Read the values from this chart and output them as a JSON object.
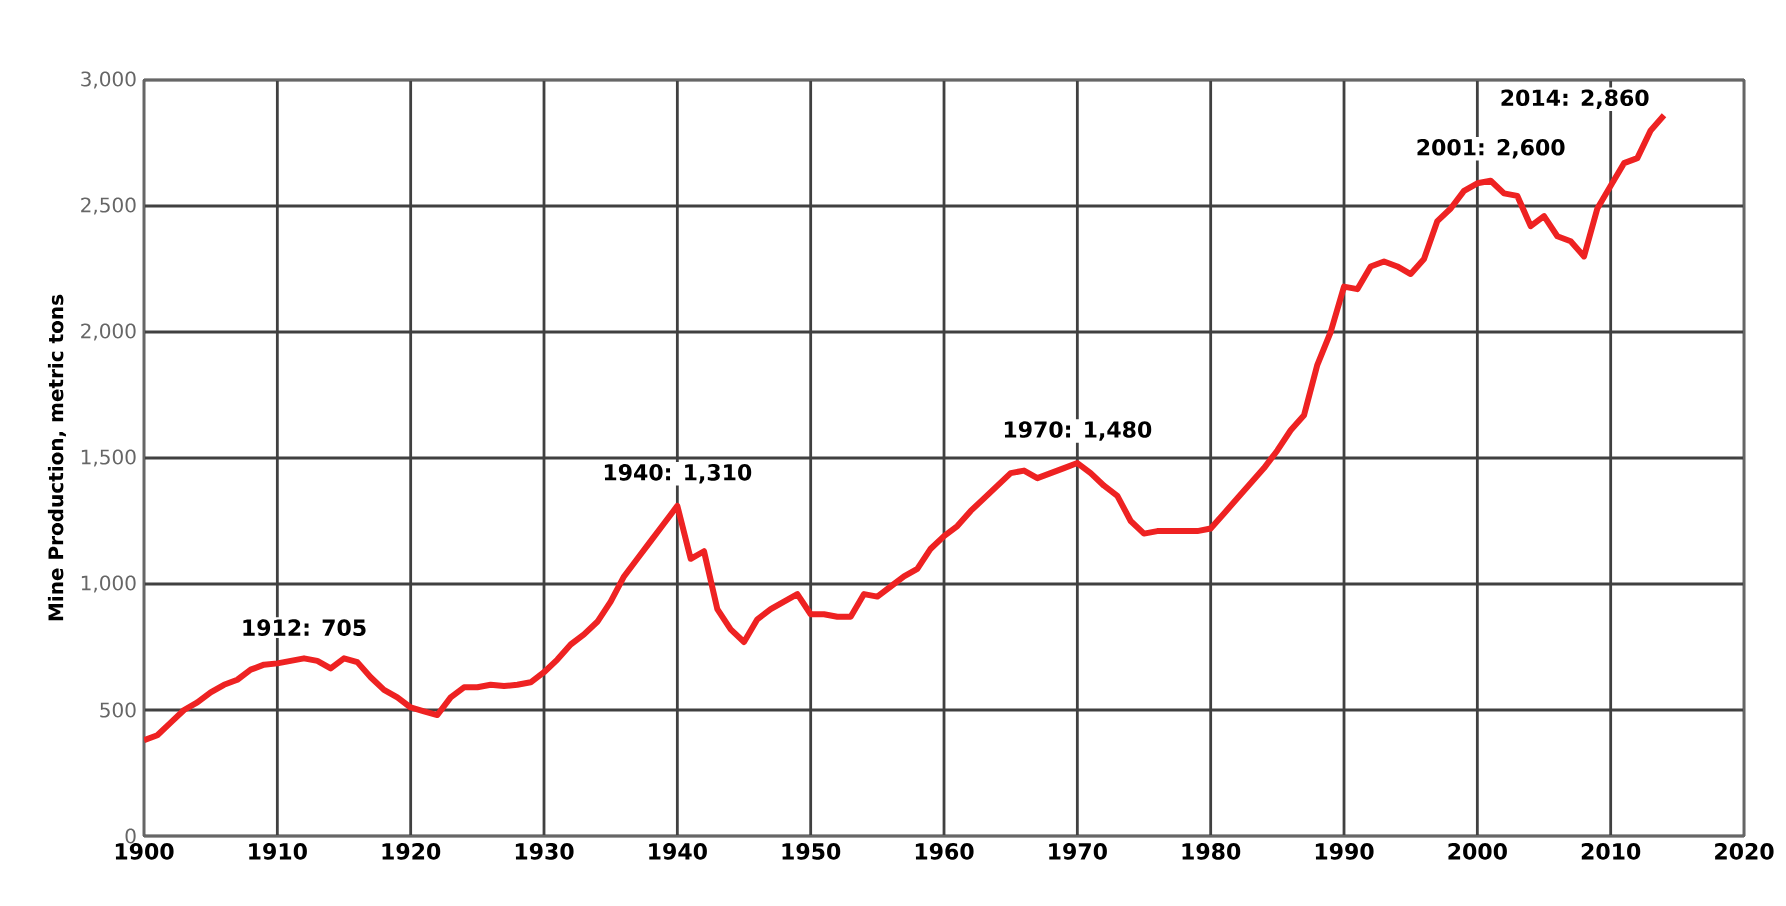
{
  "chart_data": {
    "type": "line",
    "ylabel": "Mine Production, metric tons",
    "x": [
      1900,
      1901,
      1902,
      1903,
      1904,
      1905,
      1906,
      1907,
      1908,
      1909,
      1910,
      1911,
      1912,
      1913,
      1914,
      1915,
      1916,
      1917,
      1918,
      1919,
      1920,
      1921,
      1922,
      1923,
      1924,
      1925,
      1926,
      1927,
      1928,
      1929,
      1930,
      1931,
      1932,
      1933,
      1934,
      1935,
      1936,
      1937,
      1938,
      1939,
      1940,
      1941,
      1942,
      1943,
      1944,
      1945,
      1946,
      1947,
      1948,
      1949,
      1950,
      1951,
      1952,
      1953,
      1954,
      1955,
      1956,
      1957,
      1958,
      1959,
      1960,
      1961,
      1962,
      1963,
      1964,
      1965,
      1966,
      1967,
      1968,
      1969,
      1970,
      1971,
      1972,
      1973,
      1974,
      1975,
      1976,
      1977,
      1978,
      1979,
      1980,
      1981,
      1982,
      1983,
      1984,
      1985,
      1986,
      1987,
      1988,
      1989,
      1990,
      1991,
      1992,
      1993,
      1994,
      1995,
      1996,
      1997,
      1998,
      1999,
      2000,
      2001,
      2002,
      2003,
      2004,
      2005,
      2006,
      2007,
      2008,
      2009,
      2010,
      2011,
      2012,
      2013,
      2014
    ],
    "series": [
      {
        "color": "#ee2222",
        "values": [
          380,
          400,
          450,
          500,
          530,
          570,
          600,
          620,
          660,
          680,
          685,
          695,
          705,
          695,
          665,
          705,
          690,
          630,
          580,
          550,
          510,
          495,
          480,
          550,
          590,
          590,
          600,
          595,
          600,
          610,
          650,
          700,
          760,
          800,
          850,
          930,
          1030,
          1100,
          1170,
          1240,
          1310,
          1100,
          1130,
          900,
          820,
          770,
          860,
          900,
          930,
          960,
          880,
          880,
          870,
          870,
          960,
          950,
          990,
          1030,
          1060,
          1140,
          1190,
          1230,
          1290,
          1340,
          1390,
          1440,
          1450,
          1420,
          1440,
          1460,
          1480,
          1440,
          1390,
          1350,
          1250,
          1200,
          1210,
          1210,
          1210,
          1210,
          1220,
          1280,
          1340,
          1400,
          1460,
          1530,
          1610,
          1670,
          1870,
          2000,
          2180,
          2170,
          2260,
          2280,
          2260,
          2230,
          2290,
          2440,
          2490,
          2560,
          2590,
          2600,
          2550,
          2540,
          2420,
          2460,
          2380,
          2360,
          2300,
          2490,
          2580,
          2670,
          2690,
          2800,
          2860
        ]
      }
    ],
    "xlim": [
      1900,
      2020
    ],
    "xticks": [
      1900,
      1910,
      1920,
      1930,
      1940,
      1950,
      1960,
      1970,
      1980,
      1990,
      2000,
      2010,
      2020
    ],
    "ylim": [
      0,
      3000
    ],
    "yticks": [
      {
        "value": 0,
        "label": "0"
      },
      {
        "value": 500,
        "label": "500"
      },
      {
        "value": 1000,
        "label": "1,000"
      },
      {
        "value": 1500,
        "label": "1,500"
      },
      {
        "value": 2000,
        "label": "2,000"
      },
      {
        "value": 2500,
        "label": "2,500"
      },
      {
        "value": 3000,
        "label": "3,000"
      }
    ],
    "grid": true,
    "marker": "none",
    "line_style": "solid",
    "annotations": [
      {
        "text": "1912:  705",
        "x": 1912,
        "y": 705
      },
      {
        "text": "1940:  1,310",
        "x": 1940,
        "y": 1310
      },
      {
        "text": "1970:  1,480",
        "x": 1970,
        "y": 1480
      },
      {
        "text": "2001:  2,600",
        "x": 2001,
        "y": 2600
      },
      {
        "text": "2014:  2,860",
        "x": 2014,
        "y": 2860
      }
    ]
  }
}
